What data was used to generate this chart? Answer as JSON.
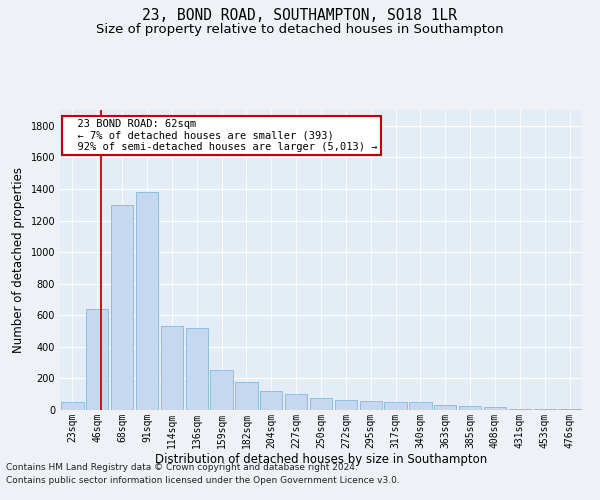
{
  "title": "23, BOND ROAD, SOUTHAMPTON, SO18 1LR",
  "subtitle": "Size of property relative to detached houses in Southampton",
  "xlabel": "Distribution of detached houses by size in Southampton",
  "ylabel": "Number of detached properties",
  "footnote1": "Contains HM Land Registry data © Crown copyright and database right 2024.",
  "footnote2": "Contains public sector information licensed under the Open Government Licence v3.0.",
  "annotation_title": "23 BOND ROAD: 62sqm",
  "annotation_line1": "← 7% of detached houses are smaller (393)",
  "annotation_line2": "92% of semi-detached houses are larger (5,013) →",
  "bar_color": "#c5d8f0",
  "bar_edge_color": "#7aafd4",
  "annotation_box_edge": "#cc0000",
  "vline_color": "#cc0000",
  "categories": [
    "23sqm",
    "46sqm",
    "68sqm",
    "91sqm",
    "114sqm",
    "136sqm",
    "159sqm",
    "182sqm",
    "204sqm",
    "227sqm",
    "250sqm",
    "272sqm",
    "295sqm",
    "317sqm",
    "340sqm",
    "363sqm",
    "385sqm",
    "408sqm",
    "431sqm",
    "453sqm",
    "476sqm"
  ],
  "values": [
    50,
    640,
    1300,
    1380,
    535,
    520,
    255,
    175,
    120,
    100,
    75,
    65,
    55,
    50,
    48,
    30,
    28,
    22,
    8,
    6,
    5
  ],
  "ylim": [
    0,
    1900
  ],
  "yticks": [
    0,
    200,
    400,
    600,
    800,
    1000,
    1200,
    1400,
    1600,
    1800
  ],
  "background_color": "#eef2f7",
  "plot_bg_color": "#e4edf5",
  "grid_color": "#ffffff",
  "title_fontsize": 10.5,
  "subtitle_fontsize": 9.5,
  "axis_label_fontsize": 8.5,
  "tick_fontsize": 7,
  "footnote_fontsize": 6.5
}
